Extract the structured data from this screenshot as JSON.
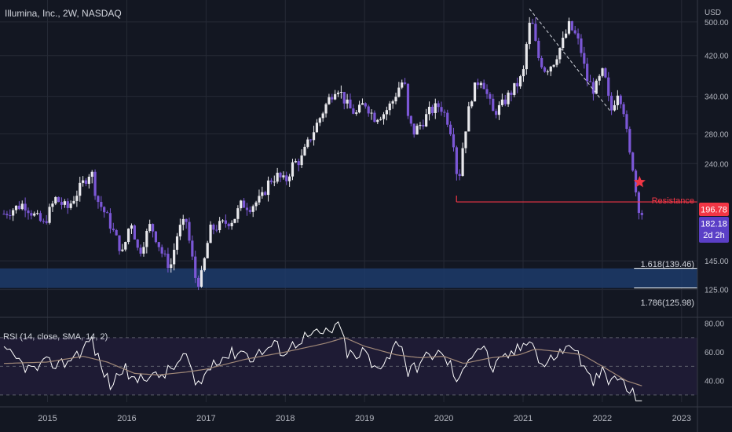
{
  "header": {
    "title": "Illumina, Inc., 2W, NASDAQ",
    "currency": "USD"
  },
  "colors": {
    "background": "#131722",
    "grid": "#262a36",
    "up_candle": "#e8e8ec",
    "down_candle": "#7b57d6",
    "resistance": "#f23645",
    "fib_zone": "#1d3b6a",
    "fib_line": "#ffffff",
    "rsi_line": "#ffffff",
    "rsi_sma": "#a08878",
    "rsi_band": "#1e1b34",
    "price_tag": "#5b3fc7",
    "resistance_tag": "#f23645"
  },
  "price_tags": {
    "resistance_value": "196.78",
    "last_price": "182.18",
    "countdown": "2d 2h"
  },
  "annotations": {
    "resistance_label": "Resistance",
    "fib_upper_label": "1.618(139.46)",
    "fib_lower_label": "1.786(125.98)",
    "star_icon": "star-icon"
  },
  "rsi": {
    "label": "RSI (14, close, SMA, 14, 2)"
  },
  "chart_data": [
    {
      "type": "candlestick",
      "title": "Illumina, Inc., 2W, NASDAQ",
      "scale": "log",
      "ylim": [
        110,
        560
      ],
      "y_ticks": [
        "500.00",
        "420.00",
        "340.00",
        "280.00",
        "240.00",
        "145.00",
        "125.00"
      ],
      "x_ticks": [
        "2015",
        "2016",
        "2017",
        "2018",
        "2019",
        "2020",
        "2021",
        "2022",
        "2023"
      ],
      "x_range": [
        2014.4,
        2023.2
      ],
      "anchors": [
        [
          2014.45,
          185
        ],
        [
          2014.7,
          195
        ],
        [
          2014.85,
          182
        ],
        [
          2014.95,
          175
        ],
        [
          2015.1,
          200
        ],
        [
          2015.25,
          190
        ],
        [
          2015.4,
          210
        ],
        [
          2015.55,
          232
        ],
        [
          2015.62,
          200
        ],
        [
          2015.75,
          182
        ],
        [
          2015.85,
          165
        ],
        [
          2015.95,
          150
        ],
        [
          2016.05,
          180
        ],
        [
          2016.15,
          150
        ],
        [
          2016.3,
          175
        ],
        [
          2016.45,
          150
        ],
        [
          2016.55,
          140
        ],
        [
          2016.65,
          170
        ],
        [
          2016.75,
          178
        ],
        [
          2016.8,
          155
        ],
        [
          2016.88,
          128
        ],
        [
          2016.95,
          135
        ],
        [
          2017.05,
          170
        ],
        [
          2017.2,
          175
        ],
        [
          2017.35,
          180
        ],
        [
          2017.45,
          195
        ],
        [
          2017.55,
          192
        ],
        [
          2017.7,
          200
        ],
        [
          2017.8,
          220
        ],
        [
          2017.9,
          225
        ],
        [
          2018.0,
          218
        ],
        [
          2018.1,
          240
        ],
        [
          2018.2,
          245
        ],
        [
          2018.3,
          270
        ],
        [
          2018.42,
          300
        ],
        [
          2018.55,
          335
        ],
        [
          2018.65,
          360
        ],
        [
          2018.72,
          340
        ],
        [
          2018.8,
          320
        ],
        [
          2018.9,
          310
        ],
        [
          2019.0,
          330
        ],
        [
          2019.12,
          305
        ],
        [
          2019.25,
          312
        ],
        [
          2019.35,
          330
        ],
        [
          2019.45,
          362
        ],
        [
          2019.5,
          370
        ],
        [
          2019.55,
          300
        ],
        [
          2019.62,
          282
        ],
        [
          2019.72,
          296
        ],
        [
          2019.82,
          314
        ],
        [
          2019.95,
          325
        ],
        [
          2020.05,
          300
        ],
        [
          2020.12,
          272
        ],
        [
          2020.18,
          212
        ],
        [
          2020.25,
          272
        ],
        [
          2020.35,
          340
        ],
        [
          2020.42,
          365
        ],
        [
          2020.48,
          375
        ],
        [
          2020.55,
          340
        ],
        [
          2020.62,
          312
        ],
        [
          2020.72,
          322
        ],
        [
          2020.82,
          342
        ],
        [
          2020.92,
          360
        ],
        [
          2021.0,
          380
        ],
        [
          2021.05,
          455
        ],
        [
          2021.1,
          512
        ],
        [
          2021.18,
          420
        ],
        [
          2021.28,
          390
        ],
        [
          2021.38,
          405
        ],
        [
          2021.5,
          450
        ],
        [
          2021.58,
          490
        ],
        [
          2021.65,
          470
        ],
        [
          2021.72,
          440
        ],
        [
          2021.8,
          372
        ],
        [
          2021.9,
          350
        ],
        [
          2022.0,
          384
        ],
        [
          2022.05,
          364
        ],
        [
          2022.1,
          310
        ],
        [
          2022.2,
          352
        ],
        [
          2022.28,
          312
        ],
        [
          2022.33,
          255
        ],
        [
          2022.38,
          240
        ],
        [
          2022.44,
          195
        ],
        [
          2022.52,
          182
        ]
      ],
      "markers": {
        "resistance": {
          "value": 196.78,
          "from": 2020.16,
          "to": 2023.2
        },
        "trendline": {
          "from": [
            2021.08,
            535
          ],
          "to": [
            2022.1,
            315
          ]
        },
        "star": {
          "x": 2022.47,
          "y": 218
        },
        "fib_upper": {
          "value": 139.46,
          "from": 2022.4
        },
        "fib_lower": {
          "value": 125.98,
          "from": 2022.4
        }
      }
    },
    {
      "type": "line",
      "title": "RSI (14, close, SMA, 14, 2)",
      "ylim": [
        25,
        82
      ],
      "y_ticks": [
        "80.00",
        "60.00",
        "40.00"
      ],
      "bands": [
        70,
        50,
        30
      ],
      "rsi_anchors": [
        [
          2014.45,
          60
        ],
        [
          2014.6,
          55
        ],
        [
          2014.8,
          47
        ],
        [
          2015.0,
          52
        ],
        [
          2015.2,
          52
        ],
        [
          2015.45,
          62
        ],
        [
          2015.55,
          70
        ],
        [
          2015.65,
          53
        ],
        [
          2015.8,
          36
        ],
        [
          2015.95,
          50
        ],
        [
          2016.1,
          38
        ],
        [
          2016.2,
          45
        ],
        [
          2016.35,
          42
        ],
        [
          2016.55,
          47
        ],
        [
          2016.75,
          58
        ],
        [
          2016.85,
          37
        ],
        [
          2016.95,
          40
        ],
        [
          2017.1,
          55
        ],
        [
          2017.3,
          58
        ],
        [
          2017.45,
          62
        ],
        [
          2017.55,
          56
        ],
        [
          2017.7,
          60
        ],
        [
          2017.85,
          65
        ],
        [
          2018.0,
          60
        ],
        [
          2018.2,
          70
        ],
        [
          2018.4,
          72
        ],
        [
          2018.55,
          74
        ],
        [
          2018.68,
          80
        ],
        [
          2018.78,
          60
        ],
        [
          2018.9,
          55
        ],
        [
          2019.0,
          62
        ],
        [
          2019.1,
          48
        ],
        [
          2019.2,
          52
        ],
        [
          2019.3,
          57
        ],
        [
          2019.45,
          70
        ],
        [
          2019.55,
          45
        ],
        [
          2019.65,
          50
        ],
        [
          2019.75,
          55
        ],
        [
          2019.9,
          60
        ],
        [
          2020.0,
          56
        ],
        [
          2020.1,
          50
        ],
        [
          2020.18,
          35
        ],
        [
          2020.28,
          55
        ],
        [
          2020.4,
          62
        ],
        [
          2020.5,
          65
        ],
        [
          2020.6,
          48
        ],
        [
          2020.7,
          52
        ],
        [
          2020.82,
          58
        ],
        [
          2020.95,
          62
        ],
        [
          2021.05,
          68
        ],
        [
          2021.1,
          74
        ],
        [
          2021.18,
          55
        ],
        [
          2021.28,
          50
        ],
        [
          2021.4,
          58
        ],
        [
          2021.55,
          62
        ],
        [
          2021.62,
          66
        ],
        [
          2021.72,
          55
        ],
        [
          2021.82,
          42
        ],
        [
          2021.92,
          40
        ],
        [
          2022.0,
          46
        ],
        [
          2022.08,
          38
        ],
        [
          2022.18,
          44
        ],
        [
          2022.28,
          36
        ],
        [
          2022.35,
          32
        ],
        [
          2022.45,
          27
        ],
        [
          2022.52,
          26
        ]
      ],
      "sma_anchors": [
        [
          2014.45,
          52
        ],
        [
          2015.0,
          53
        ],
        [
          2015.45,
          57
        ],
        [
          2015.75,
          53
        ],
        [
          2016.1,
          45
        ],
        [
          2016.4,
          44
        ],
        [
          2016.75,
          46
        ],
        [
          2017.0,
          48
        ],
        [
          2017.5,
          55
        ],
        [
          2018.0,
          60
        ],
        [
          2018.5,
          66
        ],
        [
          2018.75,
          70
        ],
        [
          2019.0,
          64
        ],
        [
          2019.4,
          58
        ],
        [
          2019.7,
          56
        ],
        [
          2020.0,
          57
        ],
        [
          2020.25,
          52
        ],
        [
          2020.6,
          56
        ],
        [
          2020.95,
          58
        ],
        [
          2021.15,
          62
        ],
        [
          2021.5,
          60
        ],
        [
          2021.75,
          58
        ],
        [
          2022.0,
          50
        ],
        [
          2022.3,
          40
        ],
        [
          2022.52,
          36
        ]
      ]
    }
  ]
}
